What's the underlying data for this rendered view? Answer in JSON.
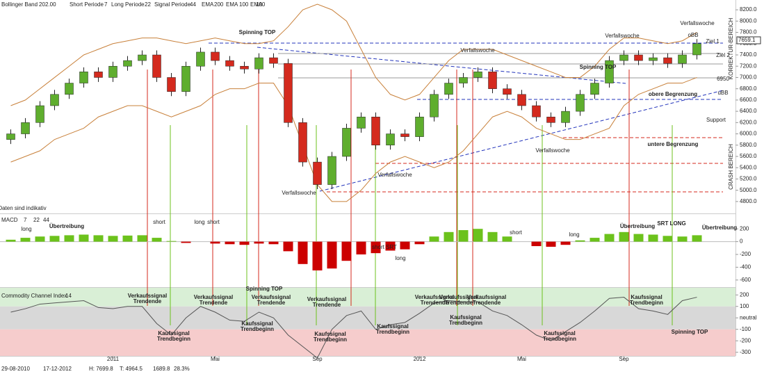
{
  "chart_data": {
    "type": "candlestick",
    "header": [
      {
        "text": "Bollinger Band",
        "color": "#333333"
      },
      {
        "text": "20",
        "color": "#e07a30"
      },
      {
        "text": "2.00",
        "color": "#e07a30"
      },
      {
        "text": "Short Periode",
        "color": "#333333"
      },
      {
        "text": "7",
        "color": "#333333"
      },
      {
        "text": "Long Periode",
        "color": "#333333"
      },
      {
        "text": "22",
        "color": "#333333"
      },
      {
        "text": "Signal Periode",
        "color": "#333333"
      },
      {
        "text": "44",
        "color": "#333333"
      },
      {
        "text": "EMA",
        "color": "#333333"
      },
      {
        "text": "200",
        "color": "#a020a0"
      },
      {
        "text": "EMA",
        "color": "#333333"
      },
      {
        "text": "100",
        "color": "#208c8c"
      },
      {
        "text": "EMA",
        "color": "#333333"
      },
      {
        "text": "100",
        "color": "#e07a30"
      }
    ],
    "categories": [
      null,
      null,
      null,
      null,
      null,
      null,
      null,
      "2011",
      null,
      null,
      null,
      null,
      null,
      null,
      "Mai",
      null,
      null,
      null,
      null,
      null,
      null,
      "Sep",
      null,
      null,
      null,
      null,
      null,
      null,
      "2012",
      null,
      null,
      null,
      null,
      null,
      null,
      "Mai",
      null,
      null,
      null,
      null,
      null,
      null,
      "Sep",
      null,
      null,
      null,
      null,
      null
    ],
    "open": [
      5900,
      6000,
      6200,
      6500,
      6700,
      6900,
      7100,
      7000,
      7200,
      7300,
      7400,
      7000,
      6750,
      7200,
      7450,
      7300,
      7200,
      7150,
      7350,
      7250,
      6200,
      5500,
      5100,
      5600,
      6100,
      6300,
      5800,
      6000,
      5950,
      6300,
      6700,
      6900,
      7000,
      7100,
      6800,
      6700,
      6500,
      6300,
      6200,
      6400,
      6700,
      6900,
      7300,
      7400,
      7300,
      7350,
      7250,
      7400
    ],
    "high": [
      6080,
      6280,
      6580,
      6780,
      6980,
      7180,
      7180,
      7280,
      7380,
      7480,
      7480,
      7080,
      7280,
      7530,
      7530,
      7380,
      7280,
      7430,
      7430,
      7330,
      6280,
      5580,
      5680,
      6180,
      6380,
      6380,
      6080,
      6080,
      6380,
      6780,
      6980,
      7080,
      7180,
      7180,
      6880,
      6780,
      6580,
      6380,
      6480,
      6780,
      6980,
      7380,
      7480,
      7480,
      7430,
      7430,
      7480,
      7680
    ],
    "low": [
      5820,
      5920,
      6120,
      6420,
      6620,
      6820,
      6920,
      6920,
      7120,
      7220,
      6920,
      6670,
      6670,
      7120,
      7220,
      7120,
      7070,
      7070,
      7170,
      6120,
      5420,
      5020,
      5020,
      5520,
      6020,
      5720,
      5720,
      5870,
      5870,
      6220,
      6620,
      6820,
      6920,
      6720,
      6620,
      6420,
      6220,
      6120,
      6120,
      6320,
      6620,
      6820,
      7220,
      7220,
      7220,
      7170,
      7170,
      7320
    ],
    "close": [
      6000,
      6200,
      6500,
      6700,
      6900,
      7100,
      7000,
      7200,
      7300,
      7400,
      7000,
      6750,
      7200,
      7450,
      7300,
      7200,
      7150,
      7350,
      7250,
      6200,
      5500,
      5100,
      5600,
      6100,
      6300,
      5800,
      6000,
      5950,
      6300,
      6700,
      6900,
      7000,
      7100,
      6800,
      6700,
      6500,
      6300,
      6200,
      6400,
      6700,
      6900,
      7300,
      7400,
      7300,
      7350,
      7250,
      7400,
      7600
    ],
    "up_color": "#5fae2e",
    "down_color": "#d42a1e",
    "bollinger_upper": [
      6500,
      6600,
      6800,
      7000,
      7200,
      7400,
      7500,
      7600,
      7650,
      7700,
      7700,
      7650,
      7600,
      7650,
      7700,
      7650,
      7600,
      7600,
      7650,
      7900,
      8200,
      8300,
      8200,
      8000,
      7500,
      7000,
      6700,
      6600,
      6700,
      7000,
      7300,
      7500,
      7500,
      7500,
      7400,
      7300,
      7200,
      7100,
      7000,
      7000,
      7200,
      7500,
      7700,
      7700,
      7650,
      7600,
      7650,
      7800
    ],
    "bollinger_lower": [
      5500,
      5600,
      5700,
      5900,
      6000,
      6100,
      6300,
      6400,
      6500,
      6500,
      6400,
      6300,
      6400,
      6500,
      6700,
      6800,
      6800,
      6900,
      6900,
      6500,
      5800,
      5100,
      4800,
      4800,
      5000,
      5300,
      5500,
      5600,
      5500,
      5400,
      5500,
      5700,
      6000,
      6300,
      6400,
      6300,
      6100,
      6000,
      5900,
      5900,
      6000,
      6100,
      6500,
      6700,
      6800,
      6900,
      6900,
      7000
    ],
    "bollinger_color": "#c8803a",
    "ylim": [
      4700,
      8300
    ],
    "yticks": [
      {
        "value": 4800,
        "label": "4800.0"
      },
      {
        "value": 5000,
        "label": "5000.0"
      },
      {
        "value": 5200,
        "label": "5200.0"
      },
      {
        "value": 5400,
        "label": "5400.0"
      },
      {
        "value": 5600,
        "label": "5600.0"
      },
      {
        "value": 5800,
        "label": "5800.0"
      },
      {
        "value": 6000,
        "label": "6000.0"
      },
      {
        "value": 6200,
        "label": "6200.0"
      },
      {
        "value": 6400,
        "label": "6400.0"
      },
      {
        "value": 6600,
        "label": "6600.0"
      },
      {
        "value": 6800,
        "label": "6800.0"
      },
      {
        "value": 7000,
        "label": "7000.0"
      },
      {
        "value": 7200,
        "label": "7200.0"
      },
      {
        "value": 7400,
        "label": "7400.0"
      },
      {
        "value": 7600,
        "label": "7600.0"
      },
      {
        "value": 7800,
        "label": "7800.0"
      },
      {
        "value": 8000,
        "label": "8000.0"
      },
      {
        "value": 8200,
        "label": "8200.0"
      }
    ],
    "last_price": {
      "value": 7659.1,
      "label": "7659.1"
    },
    "price_annotations": [
      {
        "text": [
          "Spinning TOP"
        ],
        "color": "#2222cc"
      },
      {
        "text": [
          "Verfallswoche"
        ],
        "color": "#222222"
      },
      {
        "text": [
          "Verfallswoche"
        ],
        "color": "#222222"
      },
      {
        "text": [
          "Verfallswoche"
        ],
        "color": "#222222"
      },
      {
        "text": [
          "oBB"
        ],
        "color": "#222222"
      },
      {
        "text": [
          "Ziel 1"
        ],
        "color": "#222222"
      },
      {
        "text": [
          "Ziel 2"
        ],
        "color": "#222222"
      },
      {
        "text": [
          "Spinning TOP"
        ],
        "color": "#2222cc"
      },
      {
        "text": [
          "6950"
        ],
        "color": "#222222"
      },
      {
        "text": [
          "obere Begrenzung"
        ],
        "color": "#6b6b00"
      },
      {
        "text": [
          "uBB"
        ],
        "color": "#222222"
      },
      {
        "text": [
          "Support"
        ],
        "color": "#222222"
      },
      {
        "text": [
          "untere Begrenzung"
        ],
        "color": "#6b6b00"
      },
      {
        "text": [
          "Verfallswoche"
        ],
        "color": "#222222"
      },
      {
        "text": [
          "Verfallswoche"
        ],
        "color": "#222222"
      },
      {
        "text": [
          "Verfallswoche"
        ],
        "color": "#222222"
      },
      {
        "text": [
          "Daten sind indikativ"
        ],
        "color": "#222222"
      }
    ],
    "zone_labels": [
      {
        "text": "KORREKTUR-BEREICH",
        "color": "#d42a1e"
      },
      {
        "text": "CRASH BEREICH",
        "color": "#d42a1e"
      }
    ],
    "macd": {
      "title": [
        "MACD",
        "7",
        "22",
        "44"
      ],
      "values": [
        30,
        60,
        80,
        90,
        100,
        110,
        100,
        90,
        95,
        100,
        60,
        10,
        -20,
        0,
        -30,
        -40,
        -50,
        -30,
        -40,
        -150,
        -350,
        -450,
        -420,
        -300,
        -200,
        -180,
        -140,
        -120,
        -40,
        80,
        150,
        180,
        200,
        150,
        80,
        0,
        -70,
        -80,
        -50,
        20,
        60,
        120,
        150,
        120,
        110,
        90,
        80,
        100
      ],
      "pos_color": "#6cc21c",
      "neg_color": "#cc0000",
      "ylim": [
        -700,
        300
      ],
      "yticks": [
        200,
        0,
        -200,
        -400,
        -600
      ],
      "annotations": [
        {
          "text": [
            "long"
          ],
          "color": "#222222"
        },
        {
          "text": [
            "short"
          ],
          "color": "#222222"
        },
        {
          "text": [
            "long"
          ],
          "color": "#222222"
        },
        {
          "text": [
            "short"
          ],
          "color": "#222222"
        },
        {
          "text": [
            "Übertreibung"
          ],
          "color": "#d42a1e"
        },
        {
          "text": [
            "short SRT"
          ],
          "color": "#222222"
        },
        {
          "text": [
            "long"
          ],
          "color": "#222222"
        },
        {
          "text": [
            "short"
          ],
          "color": "#222222"
        },
        {
          "text": [
            "long"
          ],
          "color": "#222222"
        },
        {
          "text": [
            "Übertreibung"
          ],
          "color": "#d42a1e"
        },
        {
          "text": [
            "SRT LONG"
          ],
          "color": "#d42a1e"
        },
        {
          "text": [
            "Übertreibung"
          ],
          "color": "#d42a1e"
        }
      ]
    },
    "cci": {
      "title": [
        "Commodity Channel Index",
        "14"
      ],
      "values": [
        50,
        80,
        120,
        130,
        140,
        150,
        90,
        80,
        100,
        100,
        -50,
        -150,
        0,
        100,
        50,
        -20,
        -30,
        50,
        0,
        -150,
        -250,
        -350,
        -100,
        20,
        60,
        -100,
        -60,
        -40,
        40,
        130,
        150,
        140,
        140,
        60,
        20,
        -60,
        -150,
        -200,
        -120,
        -40,
        60,
        170,
        180,
        80,
        60,
        30,
        150,
        180
      ],
      "color": "#555555",
      "ylim": [
        -350,
        250
      ],
      "yticks": [
        200,
        100,
        {
          "value": 0,
          "label": "neutral"
        },
        -100,
        -200,
        -300
      ],
      "annotations": [
        {
          "text": [
            "Verkaufssignal",
            "Trendende"
          ],
          "color": "#d42a1e"
        },
        {
          "text": [
            "Verkaufssignal",
            "Trendende"
          ],
          "color": "#d42a1e"
        },
        {
          "text": [
            "Verkaufssignal",
            "Trendende"
          ],
          "color": "#d42a1e"
        },
        {
          "text": [
            "Verkaufssignal",
            "Trendende"
          ],
          "color": "#d42a1e"
        },
        {
          "text": [
            "Verkaufssignal",
            "Trendende"
          ],
          "color": "#d42a1e"
        },
        {
          "text": [
            "Verkaufssignal",
            "Trendende"
          ],
          "color": "#d42a1e"
        },
        {
          "text": [
            "Verkaufssignal",
            "Trendende"
          ],
          "color": "#d42a1e"
        },
        {
          "text": [
            "Kaufssignal",
            "Trendbeginn"
          ],
          "color": "#5fae2e"
        },
        {
          "text": [
            "Kaufssignal",
            "Trendbeginn"
          ],
          "color": "#5fae2e"
        },
        {
          "text": [
            "Kaufssignal",
            "Trendbeginn"
          ],
          "color": "#5fae2e"
        },
        {
          "text": [
            "Kaufssignal",
            "Trendbeginn"
          ],
          "color": "#5fae2e"
        },
        {
          "text": [
            "Kaufssignal",
            "Trendbeginn"
          ],
          "color": "#5fae2e"
        },
        {
          "text": [
            "Kaufssignal",
            "Trendbeginn"
          ],
          "color": "#5fae2e"
        },
        {
          "text": [
            "Kaufssignal",
            "Trendbeginn"
          ],
          "color": "#5fae2e"
        },
        {
          "text": [
            "Spinning TOP"
          ],
          "color": "#2222cc"
        },
        {
          "text": [
            "Spinning TOP"
          ],
          "color": "#2222cc"
        }
      ]
    },
    "footer": [
      "29-08-2010",
      "17-12-2012",
      "H: 7699.8",
      "T: 4964.5",
      "1689.8",
      "28.3%"
    ]
  }
}
